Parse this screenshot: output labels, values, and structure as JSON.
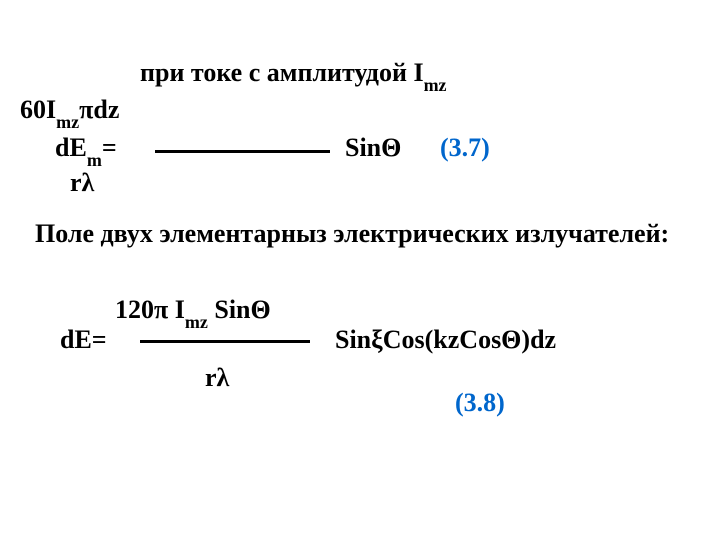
{
  "colors": {
    "text": "#000000",
    "background": "#ffffff",
    "eqnum": "#0066cc"
  },
  "typography": {
    "font_family": "Times New Roman",
    "body_fontsize_pt": 20,
    "sub_fontsize_pt": 14,
    "weight": "bold"
  },
  "heading1": {
    "prefix": "при токе с амплитудой I",
    "sub": "mz"
  },
  "eq1": {
    "numerator": {
      "a": "60I",
      "sub": "mz",
      "b": "πdz"
    },
    "lhs": {
      "a": "dE",
      "sub": "m",
      "eq": "="
    },
    "denominator": "rλ",
    "rhs": "SinΘ",
    "number": "(3.7)"
  },
  "heading2": "Поле двух элементарныз электрических излучателей:",
  "eq2": {
    "numerator": {
      "a": "120π I",
      "sub": "mz",
      "b": " SinΘ"
    },
    "lhs": "dE=",
    "denominator": "rλ",
    "rhs": "SinξCos(kzCosΘ)dz",
    "number": "(3.8)"
  }
}
